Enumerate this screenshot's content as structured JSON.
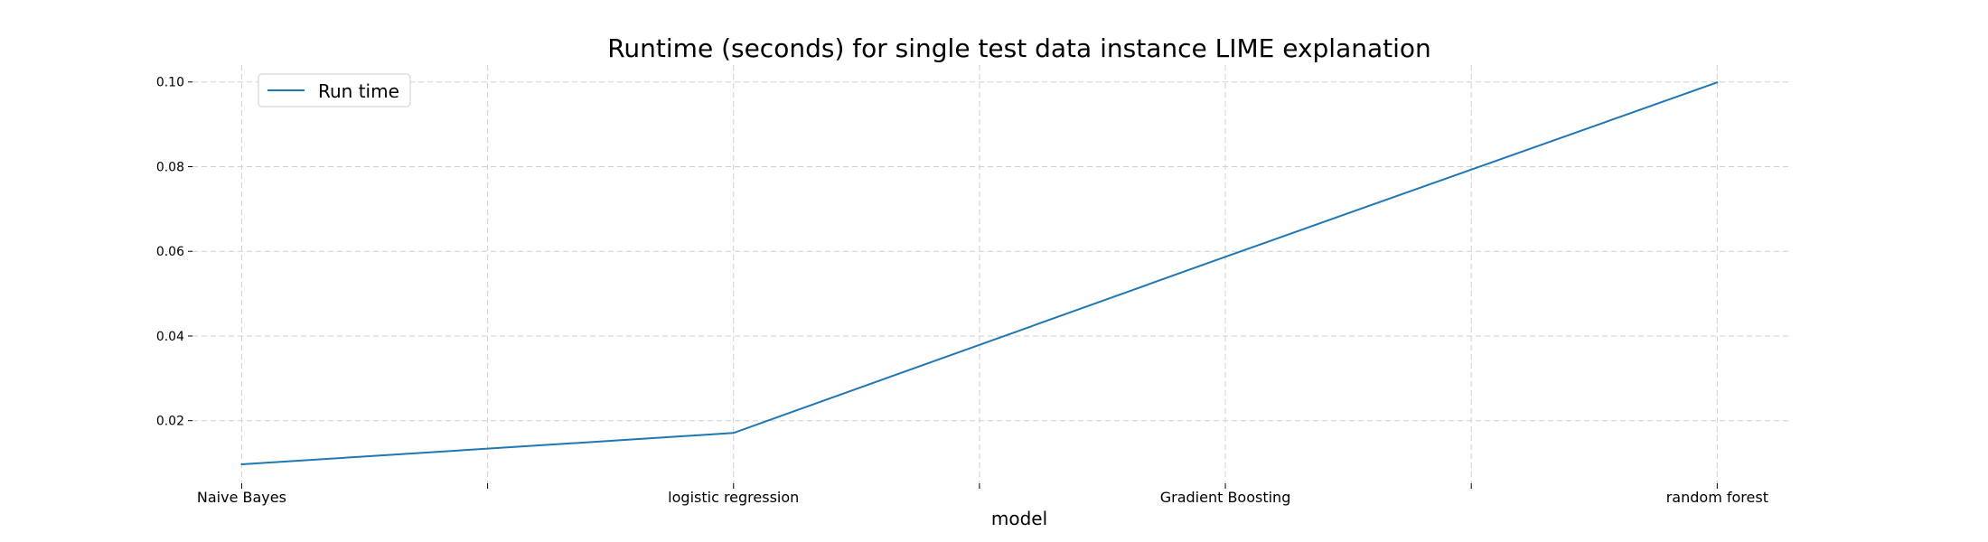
{
  "chart_data": {
    "type": "line",
    "title": "Runtime (seconds) for single test data instance LIME explanation",
    "xlabel": "model",
    "ylabel": "",
    "categories": [
      "Naive Bayes",
      "logistic regression",
      "Gradient Boosting",
      "random forest"
    ],
    "series": [
      {
        "name": "Run time",
        "values": [
          0.0097,
          0.0171,
          0.0587,
          0.0999
        ]
      }
    ],
    "x_ticks": [
      0,
      0.5,
      1,
      1.5,
      2,
      2.5,
      3
    ],
    "yticks": [
      "0.02",
      "0.04",
      "0.06",
      "0.08",
      "0.10"
    ],
    "ylim": [
      0.005,
      0.104
    ],
    "grid": true,
    "legend": "top-left",
    "colors": {
      "line": "#1f77b4",
      "grid": "#d0d0d0"
    }
  }
}
